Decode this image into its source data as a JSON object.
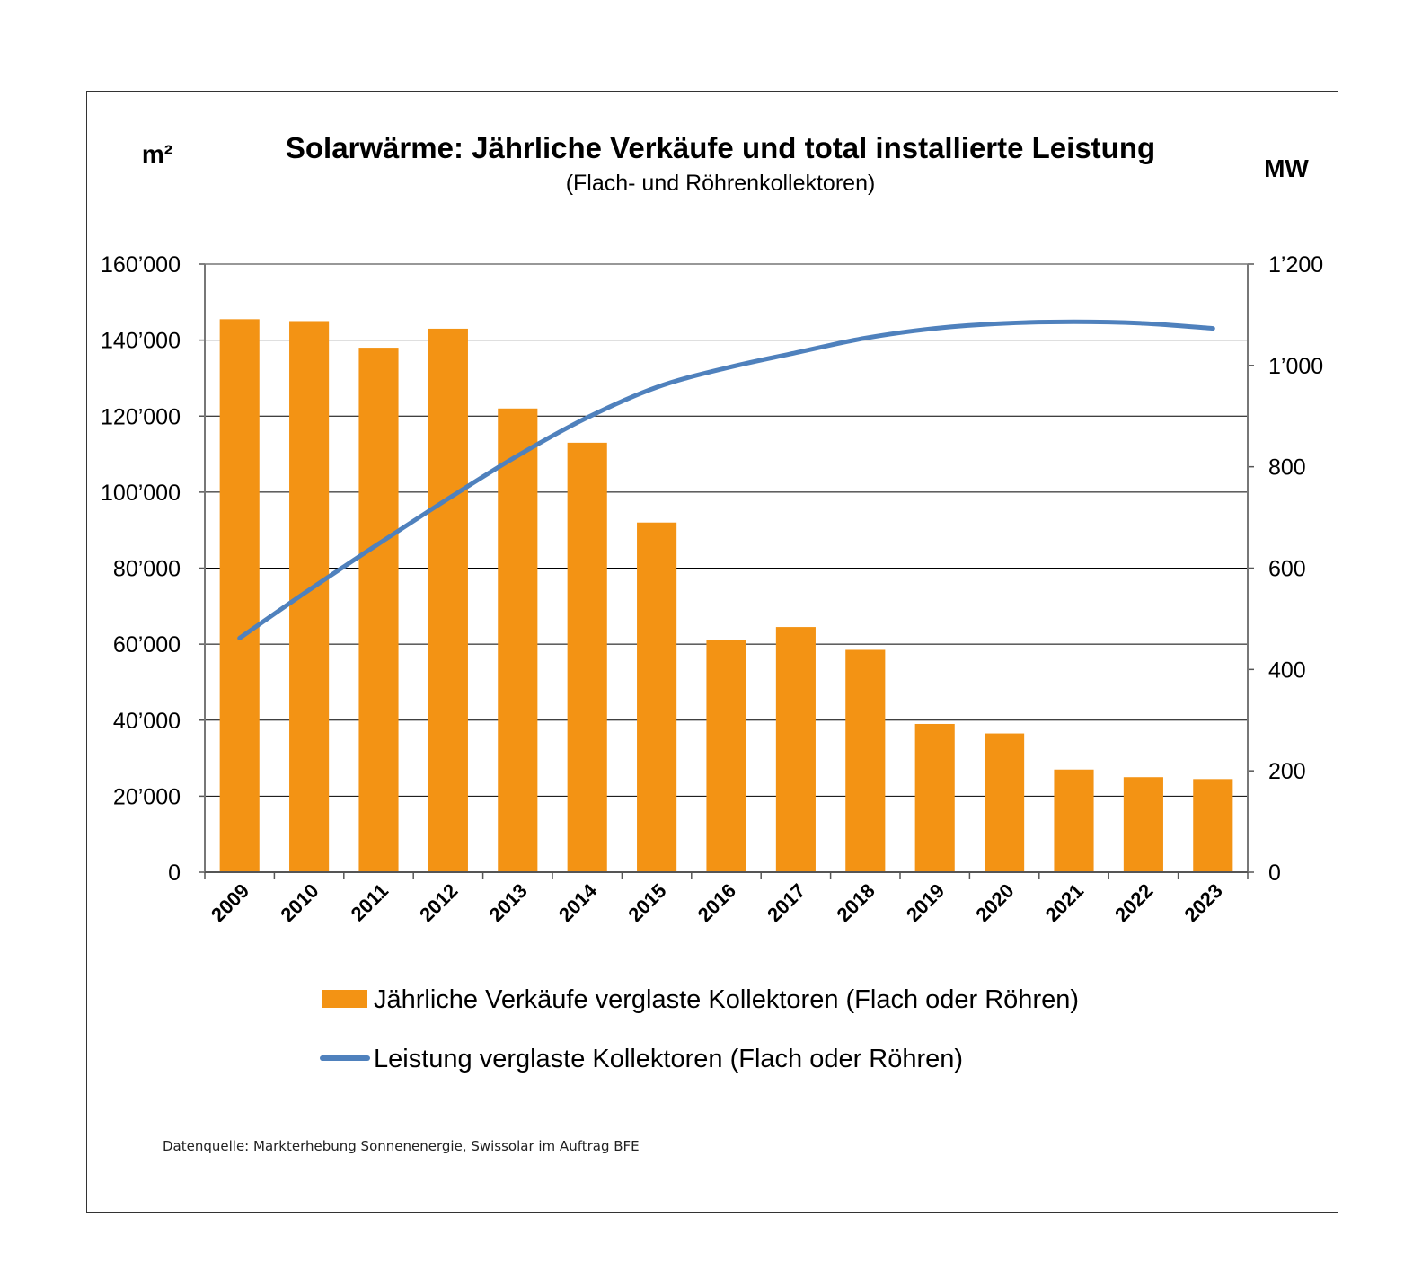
{
  "chart_data": {
    "type": "bar",
    "title": "Solarwärme: Jährliche Verkäufe und total installierte Leistung",
    "subtitle": "(Flach- und Röhrenkollektoren)",
    "ylabel_left": "m²",
    "ylabel_right": "MW",
    "categories": [
      "2009",
      "2010",
      "2011",
      "2012",
      "2013",
      "2014",
      "2015",
      "2016",
      "2017",
      "2018",
      "2019",
      "2020",
      "2021",
      "2022",
      "2023"
    ],
    "series": [
      {
        "name": "Jährliche Verkäufe verglaste Kollektoren (Flach oder Röhren)",
        "type": "bar",
        "axis": "left",
        "color": "#F39314",
        "values": [
          145500,
          145000,
          138000,
          143000,
          122000,
          113000,
          92000,
          61000,
          64500,
          58500,
          39000,
          36500,
          27000,
          25000,
          24500
        ]
      },
      {
        "name": "Leistung verglaste Kollektoren (Flach oder Röhren)",
        "type": "line",
        "axis": "right",
        "color": "#4F81BD",
        "values": [
          462,
          557,
          648,
          737,
          822,
          897,
          957,
          995,
          1025,
          1054,
          1073,
          1083,
          1086,
          1083,
          1073
        ]
      }
    ],
    "ylim_left": [
      0,
      160000
    ],
    "ylim_right": [
      0,
      1200
    ],
    "yticks_left": [
      "0",
      "20’000",
      "40’000",
      "60’000",
      "80’000",
      "100’000",
      "120’000",
      "140’000",
      "160’000"
    ],
    "yticks_right": [
      "0",
      "200",
      "400",
      "600",
      "800",
      "1’000",
      "1’200"
    ],
    "grid": "horizontal",
    "legend_position": "bottom",
    "source": "Datenquelle: Markterhebung Sonnenenergie, Swissolar im Auftrag BFE"
  }
}
